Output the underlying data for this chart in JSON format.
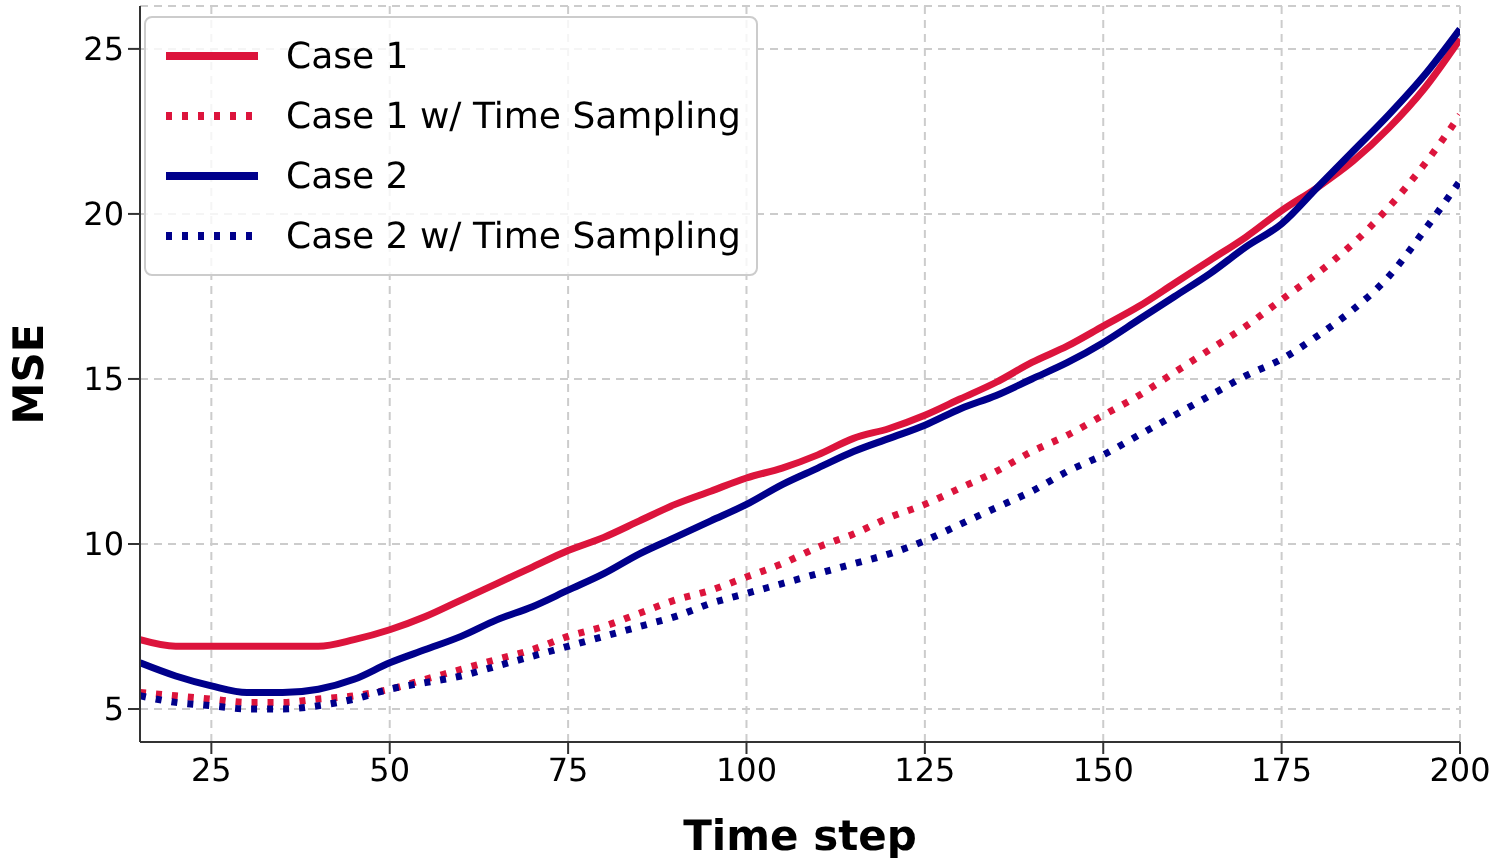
{
  "chart_data": {
    "type": "line",
    "xlabel": "Time step",
    "ylabel": "MSE",
    "x": [
      15,
      20,
      25,
      30,
      35,
      40,
      45,
      50,
      55,
      60,
      65,
      70,
      75,
      80,
      85,
      90,
      95,
      100,
      105,
      110,
      115,
      120,
      125,
      130,
      135,
      140,
      145,
      150,
      155,
      160,
      165,
      170,
      175,
      180,
      185,
      190,
      195,
      200
    ],
    "series": [
      {
        "name": "Case 1",
        "color": "#dc143c",
        "line_style": "solid",
        "values": [
          7.1,
          6.9,
          6.9,
          6.9,
          6.9,
          6.9,
          7.1,
          7.4,
          7.8,
          8.3,
          8.8,
          9.3,
          9.8,
          10.2,
          10.7,
          11.2,
          11.6,
          12.0,
          12.3,
          12.7,
          13.2,
          13.5,
          13.9,
          14.4,
          14.9,
          15.5,
          16.0,
          16.6,
          17.2,
          17.9,
          18.6,
          19.3,
          20.1,
          20.8,
          21.6,
          22.6,
          23.8,
          25.3
        ]
      },
      {
        "name": "Case 1 w/ Time Sampling",
        "color": "#dc143c",
        "line_style": "dotted",
        "values": [
          5.5,
          5.4,
          5.3,
          5.2,
          5.2,
          5.3,
          5.4,
          5.6,
          5.9,
          6.2,
          6.5,
          6.8,
          7.2,
          7.5,
          7.9,
          8.3,
          8.6,
          9.0,
          9.4,
          9.9,
          10.3,
          10.8,
          11.2,
          11.7,
          12.2,
          12.8,
          13.3,
          13.9,
          14.5,
          15.2,
          15.9,
          16.6,
          17.4,
          18.2,
          19.1,
          20.2,
          21.5,
          23.0
        ]
      },
      {
        "name": "Case 2",
        "color": "#00008b",
        "line_style": "solid",
        "values": [
          6.4,
          6.0,
          5.7,
          5.5,
          5.5,
          5.6,
          5.9,
          6.4,
          6.8,
          7.2,
          7.7,
          8.1,
          8.6,
          9.1,
          9.7,
          10.2,
          10.7,
          11.2,
          11.8,
          12.3,
          12.8,
          13.2,
          13.6,
          14.1,
          14.5,
          15.0,
          15.5,
          16.1,
          16.8,
          17.5,
          18.2,
          19.0,
          19.7,
          20.8,
          21.9,
          23.0,
          24.2,
          25.6
        ]
      },
      {
        "name": "Case 2 w/ Time Sampling",
        "color": "#00008b",
        "line_style": "dotted",
        "values": [
          5.4,
          5.2,
          5.1,
          5.0,
          5.0,
          5.1,
          5.3,
          5.6,
          5.8,
          6.0,
          6.3,
          6.6,
          6.9,
          7.2,
          7.5,
          7.8,
          8.2,
          8.5,
          8.8,
          9.1,
          9.4,
          9.7,
          10.1,
          10.6,
          11.1,
          11.6,
          12.2,
          12.7,
          13.3,
          13.9,
          14.5,
          15.1,
          15.6,
          16.3,
          17.1,
          18.1,
          19.5,
          21.0
        ]
      }
    ],
    "xlim": [
      15,
      200
    ],
    "xticks": [
      25,
      50,
      75,
      100,
      125,
      150,
      175,
      200
    ],
    "ylim": [
      4,
      26.3
    ],
    "yticks": [
      5,
      10,
      15,
      20,
      25
    ],
    "grid": true,
    "legend": "top left"
  }
}
